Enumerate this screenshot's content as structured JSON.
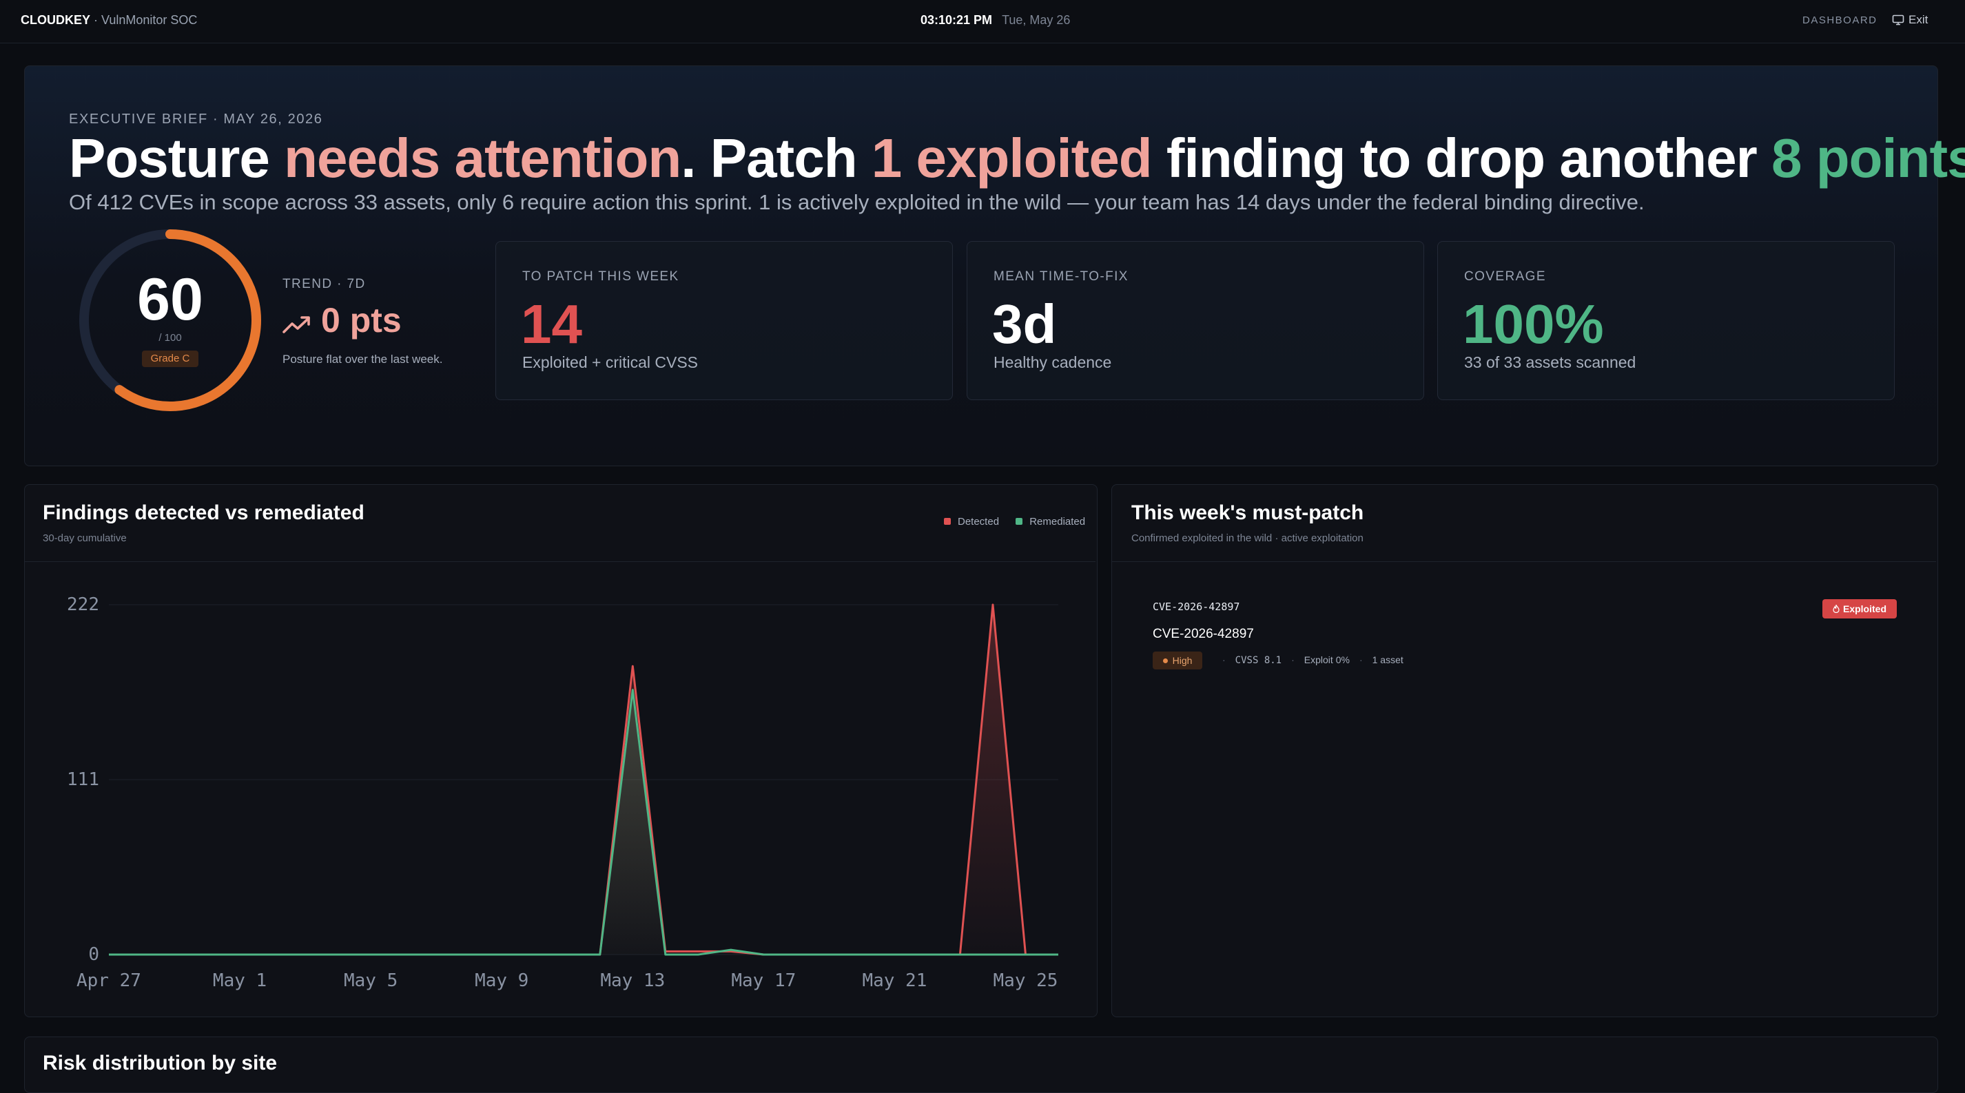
{
  "topbar": {
    "brand": "CLOUDKEY",
    "app_name": " · VulnMonitor SOC",
    "time": "03:10:21 PM",
    "date": "Tue, May 26",
    "nav_dashboard": "DASHBOARD",
    "exit_label": "Exit",
    "exit_icon": "monitor-icon"
  },
  "hero": {
    "eyebrow": "EXECUTIVE BRIEF · MAY 26, 2026",
    "headline": {
      "p1": "Posture ",
      "p2": "needs attention",
      "p3": ". Patch ",
      "p4": "1 exploited",
      "p5": " finding to drop another ",
      "p6": "8 points",
      "p7": "."
    },
    "subline": "Of 412 CVEs in scope across 33 assets, only 6 require action this sprint. 1 is actively exploited in the wild — your team has 14 days under the federal binding directive.",
    "score": "60",
    "score_max": "/ 100",
    "score_fraction": 0.6,
    "grade": "Grade C",
    "trend_label": "TREND · 7D",
    "trend_value": "0 pts",
    "trend_icon": "trending-up-icon",
    "trend_note": "Posture flat over the last week.",
    "kpis": [
      {
        "label": "TO PATCH THIS WEEK",
        "value": "14",
        "sub": "Exploited + critical CVSS",
        "color": "#e05252"
      },
      {
        "label": "MEAN TIME-TO-FIX",
        "value": "3d",
        "sub": "Healthy cadence",
        "color": "#ffffff"
      },
      {
        "label": "COVERAGE",
        "value": "100%",
        "sub": "33 of 33 assets scanned",
        "color": "#4fb686"
      }
    ]
  },
  "findings": {
    "title": "Findings detected vs remediated",
    "subtitle": "30-day cumulative",
    "legend": [
      "Detected",
      "Remediated"
    ]
  },
  "chart_data": {
    "type": "line",
    "x": [
      "Apr 27",
      "Apr 28",
      "Apr 29",
      "Apr 30",
      "May 1",
      "May 2",
      "May 3",
      "May 4",
      "May 5",
      "May 6",
      "May 7",
      "May 8",
      "May 9",
      "May 10",
      "May 11",
      "May 12",
      "May 13",
      "May 14",
      "May 15",
      "May 16",
      "May 17",
      "May 18",
      "May 19",
      "May 20",
      "May 21",
      "May 22",
      "May 23",
      "May 24",
      "May 25",
      "May 26"
    ],
    "x_ticks": [
      "Apr 27",
      "May 1",
      "May 5",
      "May 9",
      "May 13",
      "May 17",
      "May 21",
      "May 25"
    ],
    "y_ticks": [
      "0",
      "111",
      "222"
    ],
    "ylim": [
      0,
      222
    ],
    "grid": true,
    "legend_position": "top-right",
    "series": [
      {
        "name": "Detected",
        "color": "#e05252",
        "values": [
          0,
          0,
          0,
          0,
          0,
          0,
          0,
          0,
          0,
          0,
          0,
          0,
          0,
          0,
          0,
          0,
          183,
          2,
          2,
          2,
          0,
          0,
          0,
          0,
          0,
          0,
          0,
          222,
          0,
          0
        ]
      },
      {
        "name": "Remediated",
        "color": "#4fb686",
        "values": [
          0,
          0,
          0,
          0,
          0,
          0,
          0,
          0,
          0,
          0,
          0,
          0,
          0,
          0,
          0,
          0,
          168,
          0,
          0,
          3,
          0,
          0,
          0,
          0,
          0,
          0,
          0,
          0,
          0,
          0
        ]
      }
    ]
  },
  "must_patch": {
    "title": "This week's must-patch",
    "subtitle": "Confirmed exploited in the wild · active exploitation",
    "item": {
      "code": "CVE-2026-42897",
      "title": "CVE-2026-42897",
      "badge": "Exploited",
      "badge_icon": "flame-icon",
      "severity": "High",
      "cvss": "CVSS 8.1",
      "exploit": "Exploit 0%",
      "assets": "1 asset"
    }
  },
  "risk": {
    "title": "Risk distribution by site"
  }
}
